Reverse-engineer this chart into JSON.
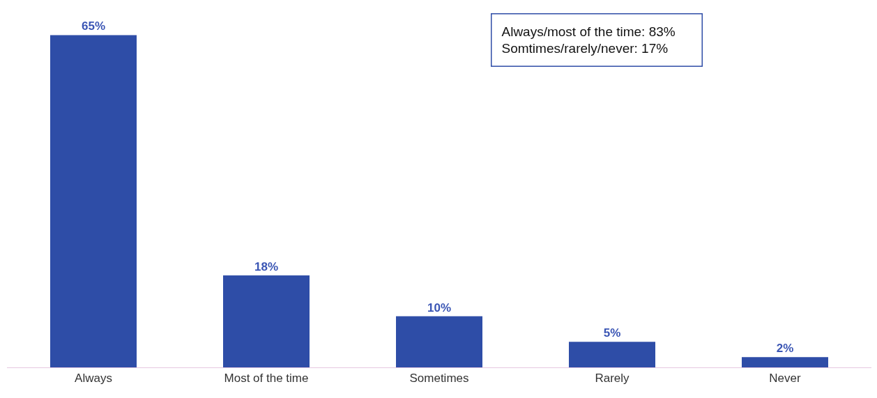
{
  "chart_data": {
    "type": "bar",
    "categories": [
      "Always",
      "Most of the time",
      "Sometimes",
      "Rarely",
      "Never"
    ],
    "values": [
      65,
      18,
      10,
      5,
      2
    ],
    "value_labels": [
      "65%",
      "18%",
      "10%",
      "5%",
      "2%"
    ],
    "color": "#2e4da7",
    "annotations": [
      "Always/most of the time: 83%",
      "Somtimes/rarely/never: 17%"
    ]
  }
}
